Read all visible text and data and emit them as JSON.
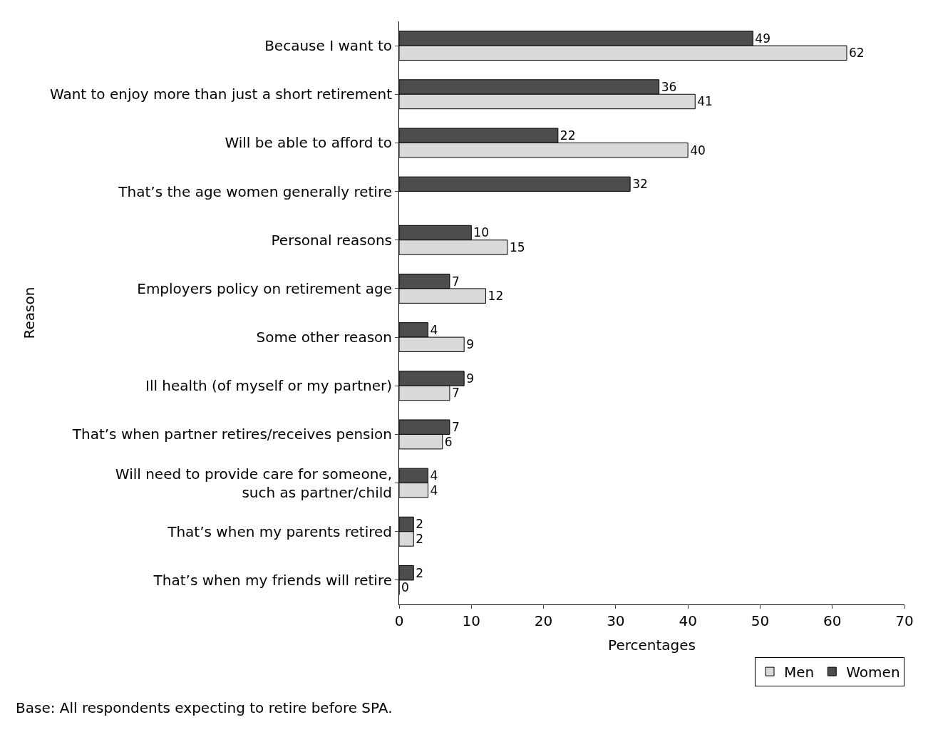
{
  "chart_data": {
    "type": "bar",
    "orientation": "horizontal",
    "xlabel": "Percentages",
    "ylabel": "Reason",
    "categories": [
      "Because I want to",
      "Want to enjoy more than just a short retirement",
      "Will be able to afford to",
      "That’s the age women generally retire",
      "Personal reasons",
      "Employers policy on retirement age",
      "Some other reason",
      "Ill health (of myself or my partner)",
      "That’s when partner retires/receives pension",
      "Will need to provide care for someone,\nsuch as partner/child",
      "That’s when my parents retired",
      "That’s when my friends will retire"
    ],
    "series": [
      {
        "name": "Women",
        "color": "#4d4d4d",
        "values": [
          49,
          36,
          22,
          32,
          10,
          7,
          4,
          9,
          7,
          4,
          2,
          2
        ]
      },
      {
        "name": "Men",
        "color": "#d9d9d9",
        "values": [
          62,
          41,
          40,
          null,
          15,
          12,
          9,
          7,
          6,
          4,
          2,
          0
        ]
      }
    ],
    "xlim": [
      0,
      70
    ],
    "xticks": [
      0,
      10,
      20,
      30,
      40,
      50,
      60,
      70
    ],
    "legend": "bottom right",
    "data_labels": true,
    "annotations": [
      "Base: All respondents expecting to retire before SPA."
    ]
  }
}
